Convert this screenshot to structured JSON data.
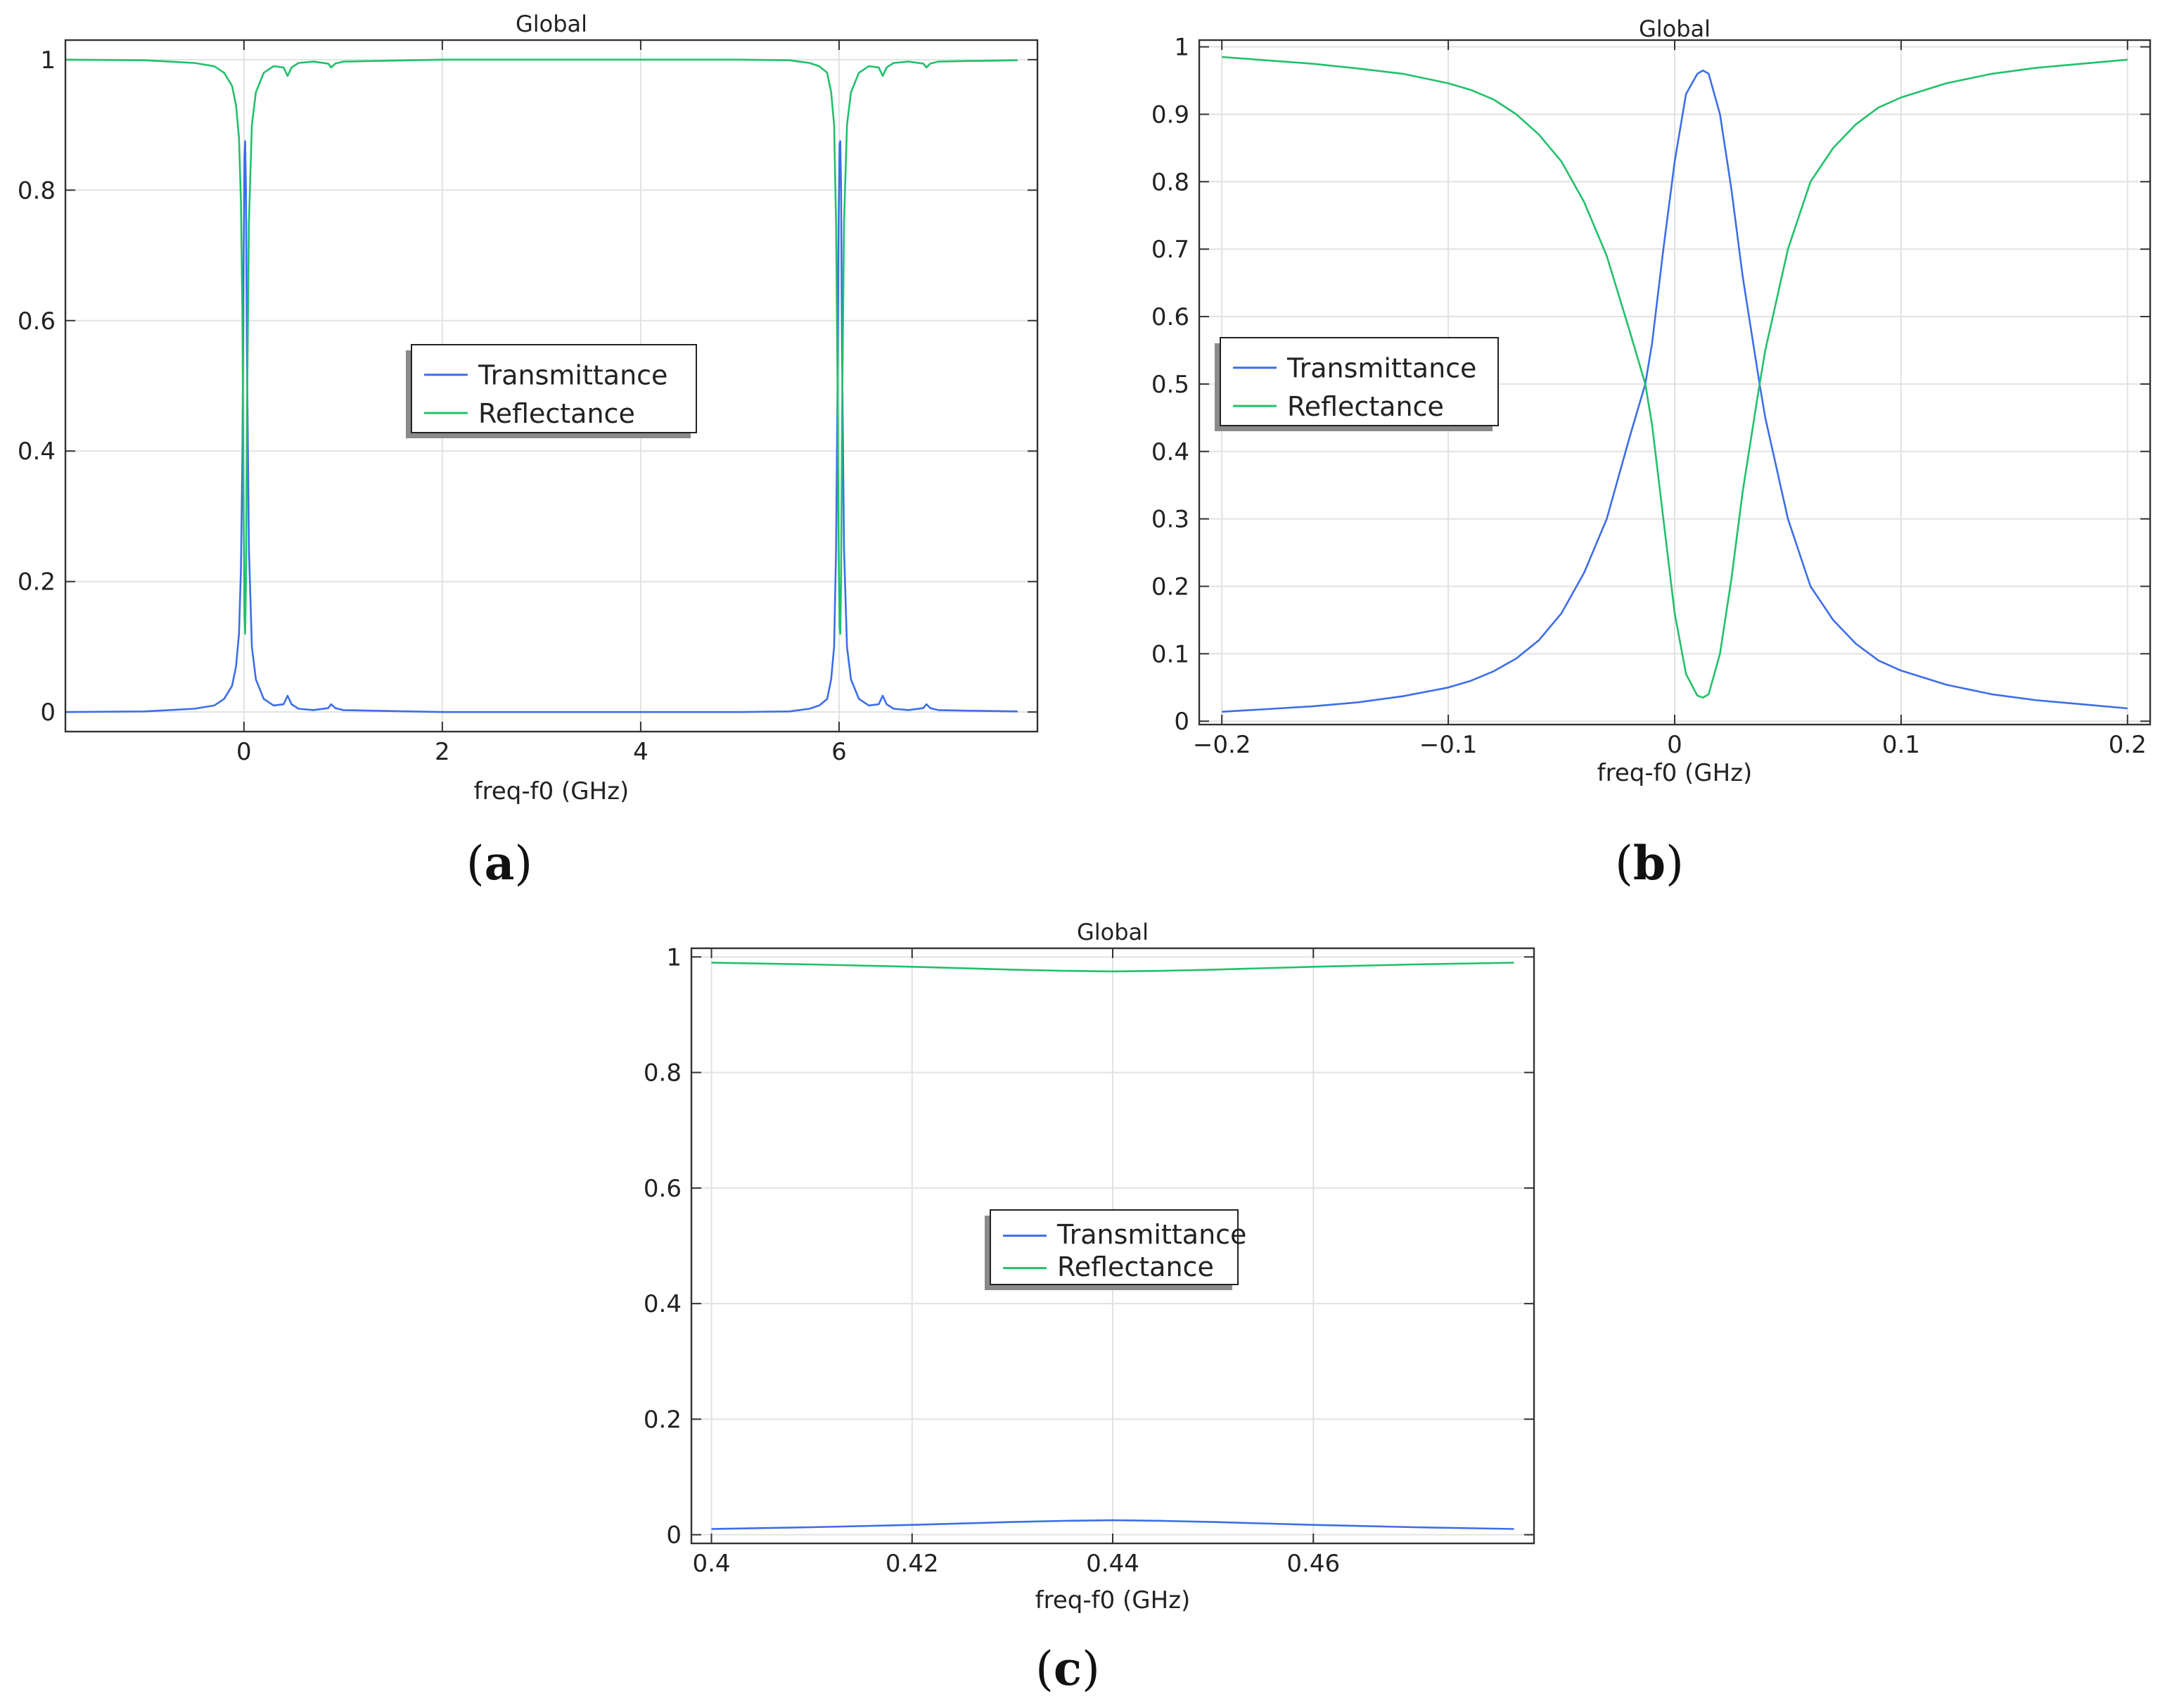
{
  "figure_captions": {
    "a": {
      "open": "(",
      "letter": "a",
      "close": ")"
    },
    "b": {
      "open": "(",
      "letter": "b",
      "close": ")"
    },
    "c": {
      "open": "(",
      "letter": "c",
      "close": ")"
    }
  },
  "colors": {
    "transmittance": "#3d6ee8",
    "reflectance": "#22c06a",
    "grid": "#e2e2e2",
    "axis": "#333333"
  },
  "chart_data": [
    {
      "id": "a",
      "type": "line",
      "title": "Global",
      "xlabel": "freq-f0 (GHz)",
      "ylabel": "",
      "xlim": [
        -1.8,
        8.0
      ],
      "ylim": [
        -0.03,
        1.03
      ],
      "xticks": [
        0,
        2,
        4,
        6
      ],
      "xtick_labels": [
        "0",
        "2",
        "4",
        "6"
      ],
      "yticks": [
        0,
        0.2,
        0.4,
        0.6,
        0.8,
        1
      ],
      "ytick_labels": [
        "0",
        "0.2",
        "0.4",
        "0.6",
        "0.8",
        "1"
      ],
      "grid": true,
      "legend": {
        "position": "center",
        "entries": [
          "Transmittance",
          "Reflectance"
        ]
      },
      "series": [
        {
          "name": "Transmittance",
          "x": [
            -1.8,
            -1.0,
            -0.5,
            -0.3,
            -0.2,
            -0.12,
            -0.08,
            -0.05,
            -0.03,
            -0.015,
            -0.005,
            0.005,
            0.012,
            0.02,
            0.03,
            0.05,
            0.08,
            0.12,
            0.2,
            0.3,
            0.4,
            0.44,
            0.48,
            0.55,
            0.7,
            0.85,
            0.88,
            0.92,
            1.0,
            1.3,
            2.0,
            3.0,
            4.0,
            5.0,
            5.5,
            5.7,
            5.8,
            5.88,
            5.92,
            5.95,
            5.97,
            5.985,
            5.995,
            6.005,
            6.012,
            6.02,
            6.03,
            6.05,
            6.08,
            6.12,
            6.2,
            6.3,
            6.4,
            6.44,
            6.48,
            6.55,
            6.7,
            6.85,
            6.88,
            6.92,
            7.0,
            7.3,
            7.8
          ],
          "y": [
            0.0,
            0.001,
            0.005,
            0.01,
            0.02,
            0.04,
            0.07,
            0.12,
            0.22,
            0.4,
            0.65,
            0.85,
            0.875,
            0.8,
            0.55,
            0.25,
            0.1,
            0.05,
            0.02,
            0.01,
            0.012,
            0.025,
            0.012,
            0.005,
            0.003,
            0.006,
            0.012,
            0.006,
            0.003,
            0.002,
            0.0,
            0.0,
            0.0,
            0.0,
            0.001,
            0.005,
            0.01,
            0.02,
            0.05,
            0.1,
            0.25,
            0.5,
            0.75,
            0.87,
            0.875,
            0.8,
            0.55,
            0.25,
            0.1,
            0.05,
            0.02,
            0.01,
            0.012,
            0.025,
            0.012,
            0.005,
            0.003,
            0.006,
            0.012,
            0.006,
            0.003,
            0.002,
            0.001
          ]
        },
        {
          "name": "Reflectance",
          "x": [
            -1.8,
            -1.0,
            -0.5,
            -0.3,
            -0.2,
            -0.12,
            -0.08,
            -0.05,
            -0.03,
            -0.015,
            -0.005,
            0.005,
            0.012,
            0.02,
            0.03,
            0.05,
            0.08,
            0.12,
            0.2,
            0.3,
            0.4,
            0.44,
            0.48,
            0.55,
            0.7,
            0.85,
            0.88,
            0.92,
            1.0,
            1.3,
            2.0,
            3.0,
            4.0,
            5.0,
            5.5,
            5.7,
            5.8,
            5.88,
            5.92,
            5.95,
            5.97,
            5.985,
            5.995,
            6.005,
            6.012,
            6.02,
            6.03,
            6.05,
            6.08,
            6.12,
            6.2,
            6.3,
            6.4,
            6.44,
            6.48,
            6.55,
            6.7,
            6.85,
            6.88,
            6.92,
            7.0,
            7.3,
            7.8
          ],
          "y": [
            1.0,
            0.999,
            0.995,
            0.99,
            0.98,
            0.96,
            0.93,
            0.88,
            0.78,
            0.6,
            0.35,
            0.15,
            0.12,
            0.2,
            0.45,
            0.75,
            0.9,
            0.95,
            0.98,
            0.99,
            0.988,
            0.975,
            0.988,
            0.995,
            0.997,
            0.994,
            0.988,
            0.994,
            0.997,
            0.998,
            1.0,
            1.0,
            1.0,
            1.0,
            0.999,
            0.995,
            0.99,
            0.98,
            0.95,
            0.9,
            0.75,
            0.5,
            0.25,
            0.13,
            0.12,
            0.2,
            0.45,
            0.75,
            0.9,
            0.95,
            0.98,
            0.99,
            0.988,
            0.975,
            0.988,
            0.995,
            0.997,
            0.994,
            0.988,
            0.994,
            0.997,
            0.998,
            0.999
          ]
        }
      ]
    },
    {
      "id": "b",
      "type": "line",
      "title": "Global",
      "xlabel": "freq-f0 (GHz)",
      "ylabel": "",
      "xlim": [
        -0.21,
        0.21
      ],
      "ylim": [
        -0.005,
        1.01
      ],
      "xticks": [
        -0.2,
        -0.1,
        0,
        0.1,
        0.2
      ],
      "xtick_labels": [
        "−0.2",
        "−0.1",
        "0",
        "0.1",
        "0.2"
      ],
      "yticks": [
        0,
        0.1,
        0.2,
        0.3,
        0.4,
        0.5,
        0.6,
        0.7,
        0.8,
        0.9,
        1
      ],
      "ytick_labels": [
        "0",
        "0.1",
        "0.2",
        "0.3",
        "0.4",
        "0.5",
        "0.6",
        "0.7",
        "0.8",
        "0.9",
        "1"
      ],
      "grid": true,
      "legend": {
        "position": "center-left",
        "entries": [
          "Transmittance",
          "Reflectance"
        ]
      },
      "series": [
        {
          "name": "Transmittance",
          "x": [
            -0.2,
            -0.18,
            -0.16,
            -0.14,
            -0.12,
            -0.1,
            -0.09,
            -0.08,
            -0.07,
            -0.06,
            -0.05,
            -0.04,
            -0.03,
            -0.02,
            -0.013,
            -0.01,
            -0.005,
            0.0,
            0.005,
            0.01,
            0.0125,
            0.015,
            0.02,
            0.025,
            0.03,
            0.0375,
            0.04,
            0.05,
            0.06,
            0.07,
            0.08,
            0.09,
            0.1,
            0.12,
            0.14,
            0.16,
            0.18,
            0.2
          ],
          "y": [
            0.014,
            0.018,
            0.022,
            0.028,
            0.037,
            0.05,
            0.06,
            0.074,
            0.093,
            0.12,
            0.16,
            0.22,
            0.3,
            0.42,
            0.5,
            0.56,
            0.7,
            0.83,
            0.93,
            0.96,
            0.965,
            0.96,
            0.9,
            0.79,
            0.66,
            0.5,
            0.45,
            0.3,
            0.2,
            0.15,
            0.115,
            0.09,
            0.075,
            0.054,
            0.04,
            0.031,
            0.025,
            0.019
          ]
        },
        {
          "name": "Reflectance",
          "x": [
            -0.2,
            -0.18,
            -0.16,
            -0.14,
            -0.12,
            -0.1,
            -0.09,
            -0.08,
            -0.07,
            -0.06,
            -0.05,
            -0.04,
            -0.03,
            -0.02,
            -0.013,
            -0.01,
            -0.005,
            0.0,
            0.005,
            0.01,
            0.0125,
            0.015,
            0.02,
            0.025,
            0.03,
            0.0375,
            0.04,
            0.05,
            0.06,
            0.07,
            0.08,
            0.09,
            0.1,
            0.12,
            0.14,
            0.16,
            0.18,
            0.2
          ],
          "y": [
            0.985,
            0.98,
            0.975,
            0.968,
            0.96,
            0.946,
            0.936,
            0.922,
            0.9,
            0.87,
            0.83,
            0.77,
            0.69,
            0.58,
            0.5,
            0.44,
            0.3,
            0.16,
            0.07,
            0.038,
            0.035,
            0.04,
            0.1,
            0.21,
            0.34,
            0.5,
            0.55,
            0.7,
            0.8,
            0.85,
            0.885,
            0.91,
            0.925,
            0.946,
            0.96,
            0.969,
            0.975,
            0.981
          ]
        }
      ]
    },
    {
      "id": "c",
      "type": "line",
      "title": "Global",
      "xlabel": "freq-f0 (GHz)",
      "ylabel": "",
      "xlim": [
        0.398,
        0.482
      ],
      "ylim": [
        -0.015,
        1.015
      ],
      "xticks": [
        0.4,
        0.42,
        0.44,
        0.46
      ],
      "xtick_labels": [
        "0.4",
        "0.42",
        "0.44",
        "0.46"
      ],
      "yticks": [
        0,
        0.2,
        0.4,
        0.6,
        0.8,
        1
      ],
      "ytick_labels": [
        "0",
        "0.2",
        "0.4",
        "0.6",
        "0.8",
        "1"
      ],
      "grid": true,
      "legend": {
        "position": "center",
        "entries": [
          "Transmittance",
          "Reflectance"
        ]
      },
      "series": [
        {
          "name": "Transmittance",
          "x": [
            0.4,
            0.41,
            0.42,
            0.43,
            0.435,
            0.44,
            0.445,
            0.45,
            0.46,
            0.47,
            0.48
          ],
          "y": [
            0.01,
            0.013,
            0.017,
            0.022,
            0.024,
            0.025,
            0.024,
            0.022,
            0.017,
            0.013,
            0.01
          ]
        },
        {
          "name": "Reflectance",
          "x": [
            0.4,
            0.41,
            0.42,
            0.43,
            0.435,
            0.44,
            0.445,
            0.45,
            0.46,
            0.47,
            0.48
          ],
          "y": [
            0.99,
            0.987,
            0.983,
            0.978,
            0.976,
            0.975,
            0.976,
            0.978,
            0.983,
            0.987,
            0.99
          ]
        }
      ]
    }
  ]
}
